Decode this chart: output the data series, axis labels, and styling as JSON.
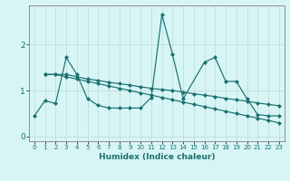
{
  "xlabel": "Humidex (Indice chaleur)",
  "background_color": "#d8f5f5",
  "grid_color": "#c0dede",
  "line_color": "#1a7070",
  "xlim": [
    -0.5,
    23.5
  ],
  "ylim": [
    -0.1,
    2.85
  ],
  "yticks": [
    0,
    1,
    2
  ],
  "xticks": [
    0,
    1,
    2,
    3,
    4,
    5,
    6,
    7,
    8,
    9,
    10,
    11,
    12,
    13,
    14,
    15,
    16,
    17,
    18,
    19,
    20,
    21,
    22,
    23
  ],
  "s1_x": [
    0,
    1,
    2,
    3,
    4,
    5,
    6,
    7,
    8,
    9,
    10,
    11,
    12,
    13,
    14,
    16,
    17,
    18,
    19,
    20,
    21,
    22,
    23
  ],
  "s1_y": [
    0.45,
    0.78,
    0.72,
    1.72,
    1.35,
    0.82,
    0.68,
    0.62,
    0.62,
    0.62,
    0.62,
    0.85,
    2.65,
    1.78,
    0.82,
    1.62,
    1.72,
    1.2,
    1.2,
    0.82,
    0.48,
    0.45,
    0.45
  ],
  "s2_x": [
    1,
    2,
    3,
    4,
    5,
    6,
    7,
    8,
    9,
    10,
    11,
    12,
    13,
    14,
    15,
    16,
    17,
    18,
    19,
    20,
    21,
    22,
    23
  ],
  "s2_y": [
    1.35,
    1.35,
    1.35,
    1.3,
    1.25,
    1.22,
    1.18,
    1.15,
    1.12,
    1.08,
    1.05,
    1.02,
    1.0,
    0.97,
    0.93,
    0.9,
    0.87,
    0.83,
    0.8,
    0.77,
    0.73,
    0.7,
    0.67
  ],
  "s3_x": [
    1,
    2,
    3,
    4,
    5,
    6,
    7,
    8,
    9,
    10,
    11,
    12,
    13,
    14,
    15,
    16,
    17,
    18,
    19,
    20,
    21,
    22,
    23
  ],
  "s3_y": [
    1.35,
    1.35,
    1.3,
    1.25,
    1.2,
    1.15,
    1.1,
    1.05,
    1.0,
    0.95,
    0.9,
    0.85,
    0.8,
    0.75,
    0.7,
    0.65,
    0.6,
    0.55,
    0.5,
    0.45,
    0.4,
    0.35,
    0.3
  ]
}
